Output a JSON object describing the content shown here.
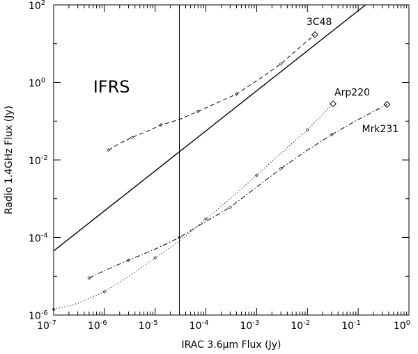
{
  "chart_data": {
    "type": "line",
    "xlabel": "IRAC 3.6μm Flux (Jy)",
    "ylabel": "Radio 1.4GHz Flux (Jy)",
    "xscale": "log",
    "yscale": "log",
    "xlim": [
      1e-07,
      1
    ],
    "ylim": [
      1e-06,
      100
    ],
    "xticks": [
      {
        "base": "10",
        "exp": "-7"
      },
      {
        "base": "10",
        "exp": "-6"
      },
      {
        "base": "10",
        "exp": "-5"
      },
      {
        "base": "10",
        "exp": "-4"
      },
      {
        "base": "10",
        "exp": "-3"
      },
      {
        "base": "10",
        "exp": "-2"
      },
      {
        "base": "10",
        "exp": "-1"
      },
      {
        "base": "10",
        "exp": "0"
      }
    ],
    "yticks": [
      {
        "base": "10",
        "exp": "-6"
      },
      {
        "base": "10",
        "exp": "-4"
      },
      {
        "base": "10",
        "exp": "-2"
      },
      {
        "base": "10",
        "exp": "0"
      },
      {
        "base": "10",
        "exp": "2"
      }
    ],
    "region_label": "IFRS",
    "grid": false,
    "vline_x": 3e-05,
    "diagonal_line": [
      [
        1e-07,
        4.5e-05
      ],
      [
        0.14,
        100
      ]
    ],
    "series": [
      {
        "name": "3C48",
        "style": "dashed",
        "points": [
          [
            1.2e-06,
            0.018
          ],
          [
            2e-06,
            0.027
          ],
          [
            3.5e-06,
            0.038
          ],
          [
            7e-06,
            0.055
          ],
          [
            1.3e-05,
            0.08
          ],
          [
            3e-05,
            0.11
          ],
          [
            7e-05,
            0.18
          ],
          [
            0.00015,
            0.28
          ],
          [
            0.0004,
            0.5
          ],
          [
            0.001,
            1.1
          ],
          [
            0.003,
            3
          ],
          [
            0.007,
            8
          ],
          [
            0.014,
            17
          ]
        ]
      },
      {
        "name": "Arp220",
        "style": "dotted",
        "points": [
          [
            1e-07,
            1.4e-06
          ],
          [
            3e-07,
            2e-06
          ],
          [
            1e-06,
            4e-06
          ],
          [
            3e-06,
            1e-05
          ],
          [
            1e-05,
            3e-05
          ],
          [
            3e-05,
            8e-05
          ],
          [
            0.0001,
            0.0003
          ],
          [
            0.0003,
            0.001
          ],
          [
            0.001,
            0.004
          ],
          [
            0.003,
            0.015
          ],
          [
            0.01,
            0.06
          ],
          [
            0.032,
            0.28
          ]
        ]
      },
      {
        "name": "Mrk231",
        "style": "dashdot",
        "points": [
          [
            5e-07,
            9e-06
          ],
          [
            1e-06,
            1.4e-05
          ],
          [
            3e-06,
            2.6e-05
          ],
          [
            1e-05,
            5e-05
          ],
          [
            3e-05,
            0.0001
          ],
          [
            0.0001,
            0.00026
          ],
          [
            0.0003,
            0.0006
          ],
          [
            0.001,
            0.002
          ],
          [
            0.003,
            0.006
          ],
          [
            0.01,
            0.018
          ],
          [
            0.03,
            0.045
          ],
          [
            0.1,
            0.11
          ],
          [
            0.37,
            0.27
          ]
        ]
      }
    ]
  }
}
